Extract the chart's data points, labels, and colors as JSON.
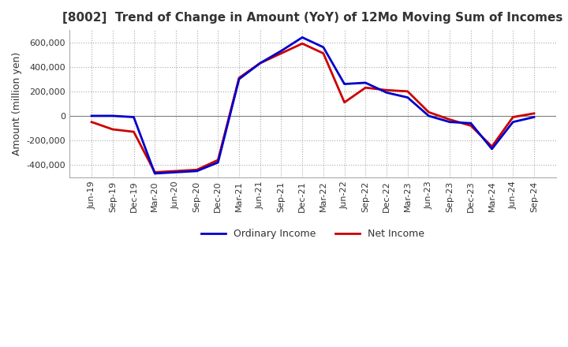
{
  "title": "[8002]  Trend of Change in Amount (YoY) of 12Mo Moving Sum of Incomes",
  "ylabel": "Amount (million yen)",
  "background_color": "#ffffff",
  "grid_color": "#aaaaaa",
  "dates": [
    "Jun-19",
    "Sep-19",
    "Dec-19",
    "Mar-20",
    "Jun-20",
    "Sep-20",
    "Dec-20",
    "Mar-21",
    "Jun-21",
    "Sep-21",
    "Dec-21",
    "Mar-22",
    "Jun-22",
    "Sep-22",
    "Dec-22",
    "Mar-23",
    "Jun-23",
    "Sep-23",
    "Dec-23",
    "Mar-24",
    "Jun-24",
    "Sep-24"
  ],
  "ordinary_income": [
    0,
    0,
    -10000,
    -470000,
    -460000,
    -450000,
    -380000,
    300000,
    430000,
    530000,
    640000,
    560000,
    260000,
    270000,
    190000,
    150000,
    0,
    -50000,
    -60000,
    -270000,
    -50000,
    -10000
  ],
  "net_income": [
    -50000,
    -110000,
    -130000,
    -460000,
    -450000,
    -440000,
    -360000,
    310000,
    430000,
    510000,
    590000,
    510000,
    110000,
    230000,
    210000,
    200000,
    30000,
    -30000,
    -80000,
    -250000,
    -10000,
    20000
  ],
  "ordinary_color": "#0000cc",
  "net_color": "#cc0000",
  "ylim": [
    -500000,
    700000
  ],
  "yticks": [
    -400000,
    -200000,
    0,
    200000,
    400000,
    600000
  ]
}
